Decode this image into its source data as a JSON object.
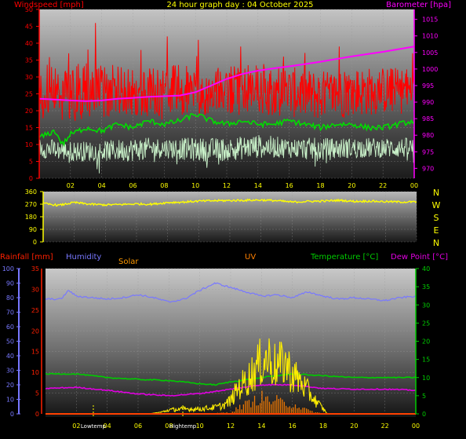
{
  "header": {
    "title": "24 hour graph day : 04 October 2025"
  },
  "colors": {
    "wind_gust": "#ff0000",
    "wind_avg": "#00dd00",
    "wind_lull": "#c8f0c8",
    "barometer": "#ff00ff",
    "direction": "#ffff00",
    "humidity": "#7878ff",
    "temperature": "#00cc00",
    "dew_point": "#e000e0",
    "uv": "#ff8000",
    "solar": "#ffee00",
    "rainfall": "#ff4000",
    "hour_label": "#ffff00",
    "compass": "#ffff00"
  },
  "chart_data": [
    {
      "type": "line",
      "name": "wind-barometer",
      "ylabel": "Windspeed [mph]",
      "y2label": "Barometer [hpa]",
      "ylim": [
        0,
        50
      ],
      "y2lim": [
        967,
        1018
      ],
      "yticks": [
        "0",
        "5",
        "10",
        "15",
        "20",
        "25",
        "30",
        "35",
        "40",
        "45",
        "50"
      ],
      "y2ticks": [
        "970",
        "975",
        "980",
        "985",
        "990",
        "995",
        "1000",
        "1005",
        "1010",
        "1015"
      ],
      "xticks": [
        "02",
        "04",
        "06",
        "08",
        "10",
        "12",
        "14",
        "16",
        "18",
        "20",
        "22",
        "00"
      ],
      "grid": true,
      "x_hours": [
        0,
        2,
        4,
        6,
        8,
        10,
        12,
        14,
        16,
        18,
        20,
        22,
        24
      ],
      "gust_range": {
        "low": [
          18,
          16,
          18,
          18,
          17,
          17,
          18,
          19,
          18,
          17,
          18,
          19,
          19
        ],
        "high": [
          33,
          34,
          34,
          33,
          34,
          33,
          33,
          34,
          33,
          32,
          33,
          33,
          33
        ]
      },
      "gust_peaks": [
        {
          "x": 3.6,
          "y": 46
        },
        {
          "x": 1.9,
          "y": 37
        },
        {
          "x": 6.5,
          "y": 38
        },
        {
          "x": 8.2,
          "y": 42
        },
        {
          "x": 10.2,
          "y": 41
        },
        {
          "x": 12.9,
          "y": 39
        },
        {
          "x": 19.2,
          "y": 39
        },
        {
          "x": 23.9,
          "y": 37
        }
      ],
      "series": [
        {
          "name": "Windspeed",
          "x": [
            0,
            1,
            1.5,
            2,
            3,
            4,
            5,
            6,
            7,
            8,
            9,
            10,
            11,
            12,
            13,
            14,
            15,
            16,
            17,
            18,
            19,
            20,
            21,
            22,
            23,
            24
          ],
          "values": [
            12,
            14,
            10,
            13,
            15,
            14,
            16,
            15,
            17,
            16,
            17,
            19,
            17,
            16,
            17,
            16,
            16,
            17,
            16,
            15,
            16,
            16,
            15,
            15,
            16,
            17
          ]
        },
        {
          "name": "Barometer",
          "x": [
            0,
            1,
            2,
            3,
            4,
            5,
            6,
            7,
            8,
            9,
            10,
            11,
            12,
            13,
            14,
            15,
            16,
            17,
            18,
            19,
            20,
            21,
            22,
            23,
            24
          ],
          "values": [
            991,
            990.8,
            990.5,
            990.3,
            990.5,
            991,
            991.3,
            991.6,
            991.8,
            992,
            993,
            995,
            997,
            998.5,
            999.5,
            1000.2,
            1000.8,
            1001.5,
            1002.2,
            1003,
            1003.8,
            1004.5,
            1005.2,
            1006,
            1006.8
          ]
        }
      ],
      "lull_range": {
        "low": [
          6,
          5,
          5,
          5,
          6,
          5,
          5,
          6,
          6,
          5,
          6,
          6,
          6
        ],
        "high": [
          12,
          11,
          11,
          12,
          12,
          12,
          12,
          13,
          12,
          12,
          12,
          12,
          12
        ]
      }
    },
    {
      "type": "line",
      "name": "wind-direction",
      "ylim": [
        0,
        360
      ],
      "yticks": [
        "0",
        "90",
        "180",
        "270",
        "360"
      ],
      "compass": [
        "N",
        "W",
        "S",
        "E",
        "N"
      ],
      "xticks": [
        "02",
        "04",
        "06",
        "08",
        "10",
        "12",
        "14",
        "16",
        "18",
        "20",
        "22",
        "00"
      ],
      "grid": true,
      "series": [
        {
          "name": "Direction",
          "x": [
            0,
            1,
            2,
            3,
            4,
            5,
            6,
            7,
            8,
            9,
            10,
            11,
            12,
            13,
            14,
            15,
            16,
            17,
            18,
            19,
            20,
            21,
            22,
            23,
            24
          ],
          "values": [
            275,
            262,
            282,
            270,
            265,
            268,
            272,
            270,
            282,
            285,
            292,
            295,
            296,
            298,
            300,
            295,
            285,
            290,
            292,
            298,
            290,
            292,
            288,
            286,
            286
          ]
        }
      ]
    },
    {
      "type": "line",
      "name": "rain-humidity-temperature",
      "labels": {
        "rainfall": "Rainfall [mm]",
        "humidity": "Humidity",
        "solar": "Solar",
        "uv": "UV",
        "temperature": "Temperature [°C]",
        "dew_point": "Dew Point [°C]"
      },
      "humidity_ticks": [
        "0",
        "10",
        "20",
        "30",
        "40",
        "50",
        "60",
        "70",
        "80",
        "90",
        "100"
      ],
      "rain_ticks": [
        "0",
        "5",
        "10",
        "15",
        "20",
        "25",
        "30",
        "35"
      ],
      "temp_ticks": [
        "0",
        "5",
        "10",
        "15",
        "20",
        "25",
        "30",
        "35",
        "40"
      ],
      "humidity_lim": [
        0,
        100
      ],
      "rain_lim": [
        0,
        35
      ],
      "temp_lim": [
        0,
        40
      ],
      "xticks": [
        "02",
        "04",
        "06",
        "08",
        "10",
        "12",
        "14",
        "16",
        "18",
        "20",
        "22",
        "00"
      ],
      "grid": true,
      "markers": [
        {
          "label": "Lowtemp",
          "x": 3.1
        },
        {
          "label": "Hightemp",
          "x": 8.9
        }
      ],
      "series": [
        {
          "name": "Humidity",
          "x": [
            0,
            1,
            1.5,
            2,
            3,
            4,
            5,
            6,
            7,
            8,
            9,
            10,
            11,
            12,
            13,
            14,
            15,
            16,
            17,
            18,
            19,
            20,
            21,
            22,
            23,
            24
          ],
          "values": [
            79,
            79,
            85,
            81,
            80,
            79,
            80,
            82,
            80,
            77,
            79,
            85,
            90,
            87,
            84,
            81,
            82,
            80,
            84,
            81,
            79,
            80,
            79,
            78,
            80,
            81
          ]
        },
        {
          "name": "Temperature",
          "x": [
            0,
            2,
            4,
            6,
            8,
            10,
            11,
            12,
            14,
            16,
            18,
            20,
            22,
            24
          ],
          "values": [
            11,
            11,
            10,
            9.5,
            9.2,
            8.3,
            8,
            8.8,
            10,
            11,
            10.5,
            10,
            10,
            10
          ]
        },
        {
          "name": "Dew Point",
          "x": [
            0,
            2,
            4,
            6,
            8,
            10,
            12,
            14,
            16,
            18,
            20,
            22,
            24
          ],
          "values": [
            7,
            7.3,
            6.5,
            5.5,
            5,
            5.6,
            6.8,
            8,
            8,
            7,
            6.8,
            6.8,
            6.5
          ]
        },
        {
          "name": "Solar",
          "x": [
            0,
            6.7,
            7,
            7.5,
            8,
            9,
            10,
            11,
            11.5,
            12,
            12.5,
            13,
            13.5,
            14,
            14.5,
            15,
            15.5,
            16,
            16.5,
            17,
            17.5,
            18,
            18.3,
            24
          ],
          "values": [
            0,
            0,
            0.2,
            0.5,
            1.2,
            1.5,
            1.5,
            2,
            2.5,
            4,
            8,
            10,
            13,
            16,
            17,
            14,
            16,
            12,
            10,
            7,
            4,
            1.5,
            0,
            0
          ]
        },
        {
          "name": "UV",
          "x": [
            0,
            8,
            10,
            11,
            12,
            12.5,
            13,
            13.5,
            14,
            14.5,
            15,
            15.5,
            16,
            16.5,
            17,
            17.5,
            18,
            24
          ],
          "values": [
            0,
            0,
            0,
            0.2,
            0.5,
            2,
            3,
            4,
            5,
            4,
            4,
            3,
            3,
            2,
            1,
            0.5,
            0,
            0
          ]
        },
        {
          "name": "Rainfall",
          "x": [
            0,
            24
          ],
          "values": [
            0,
            0
          ]
        }
      ]
    }
  ]
}
